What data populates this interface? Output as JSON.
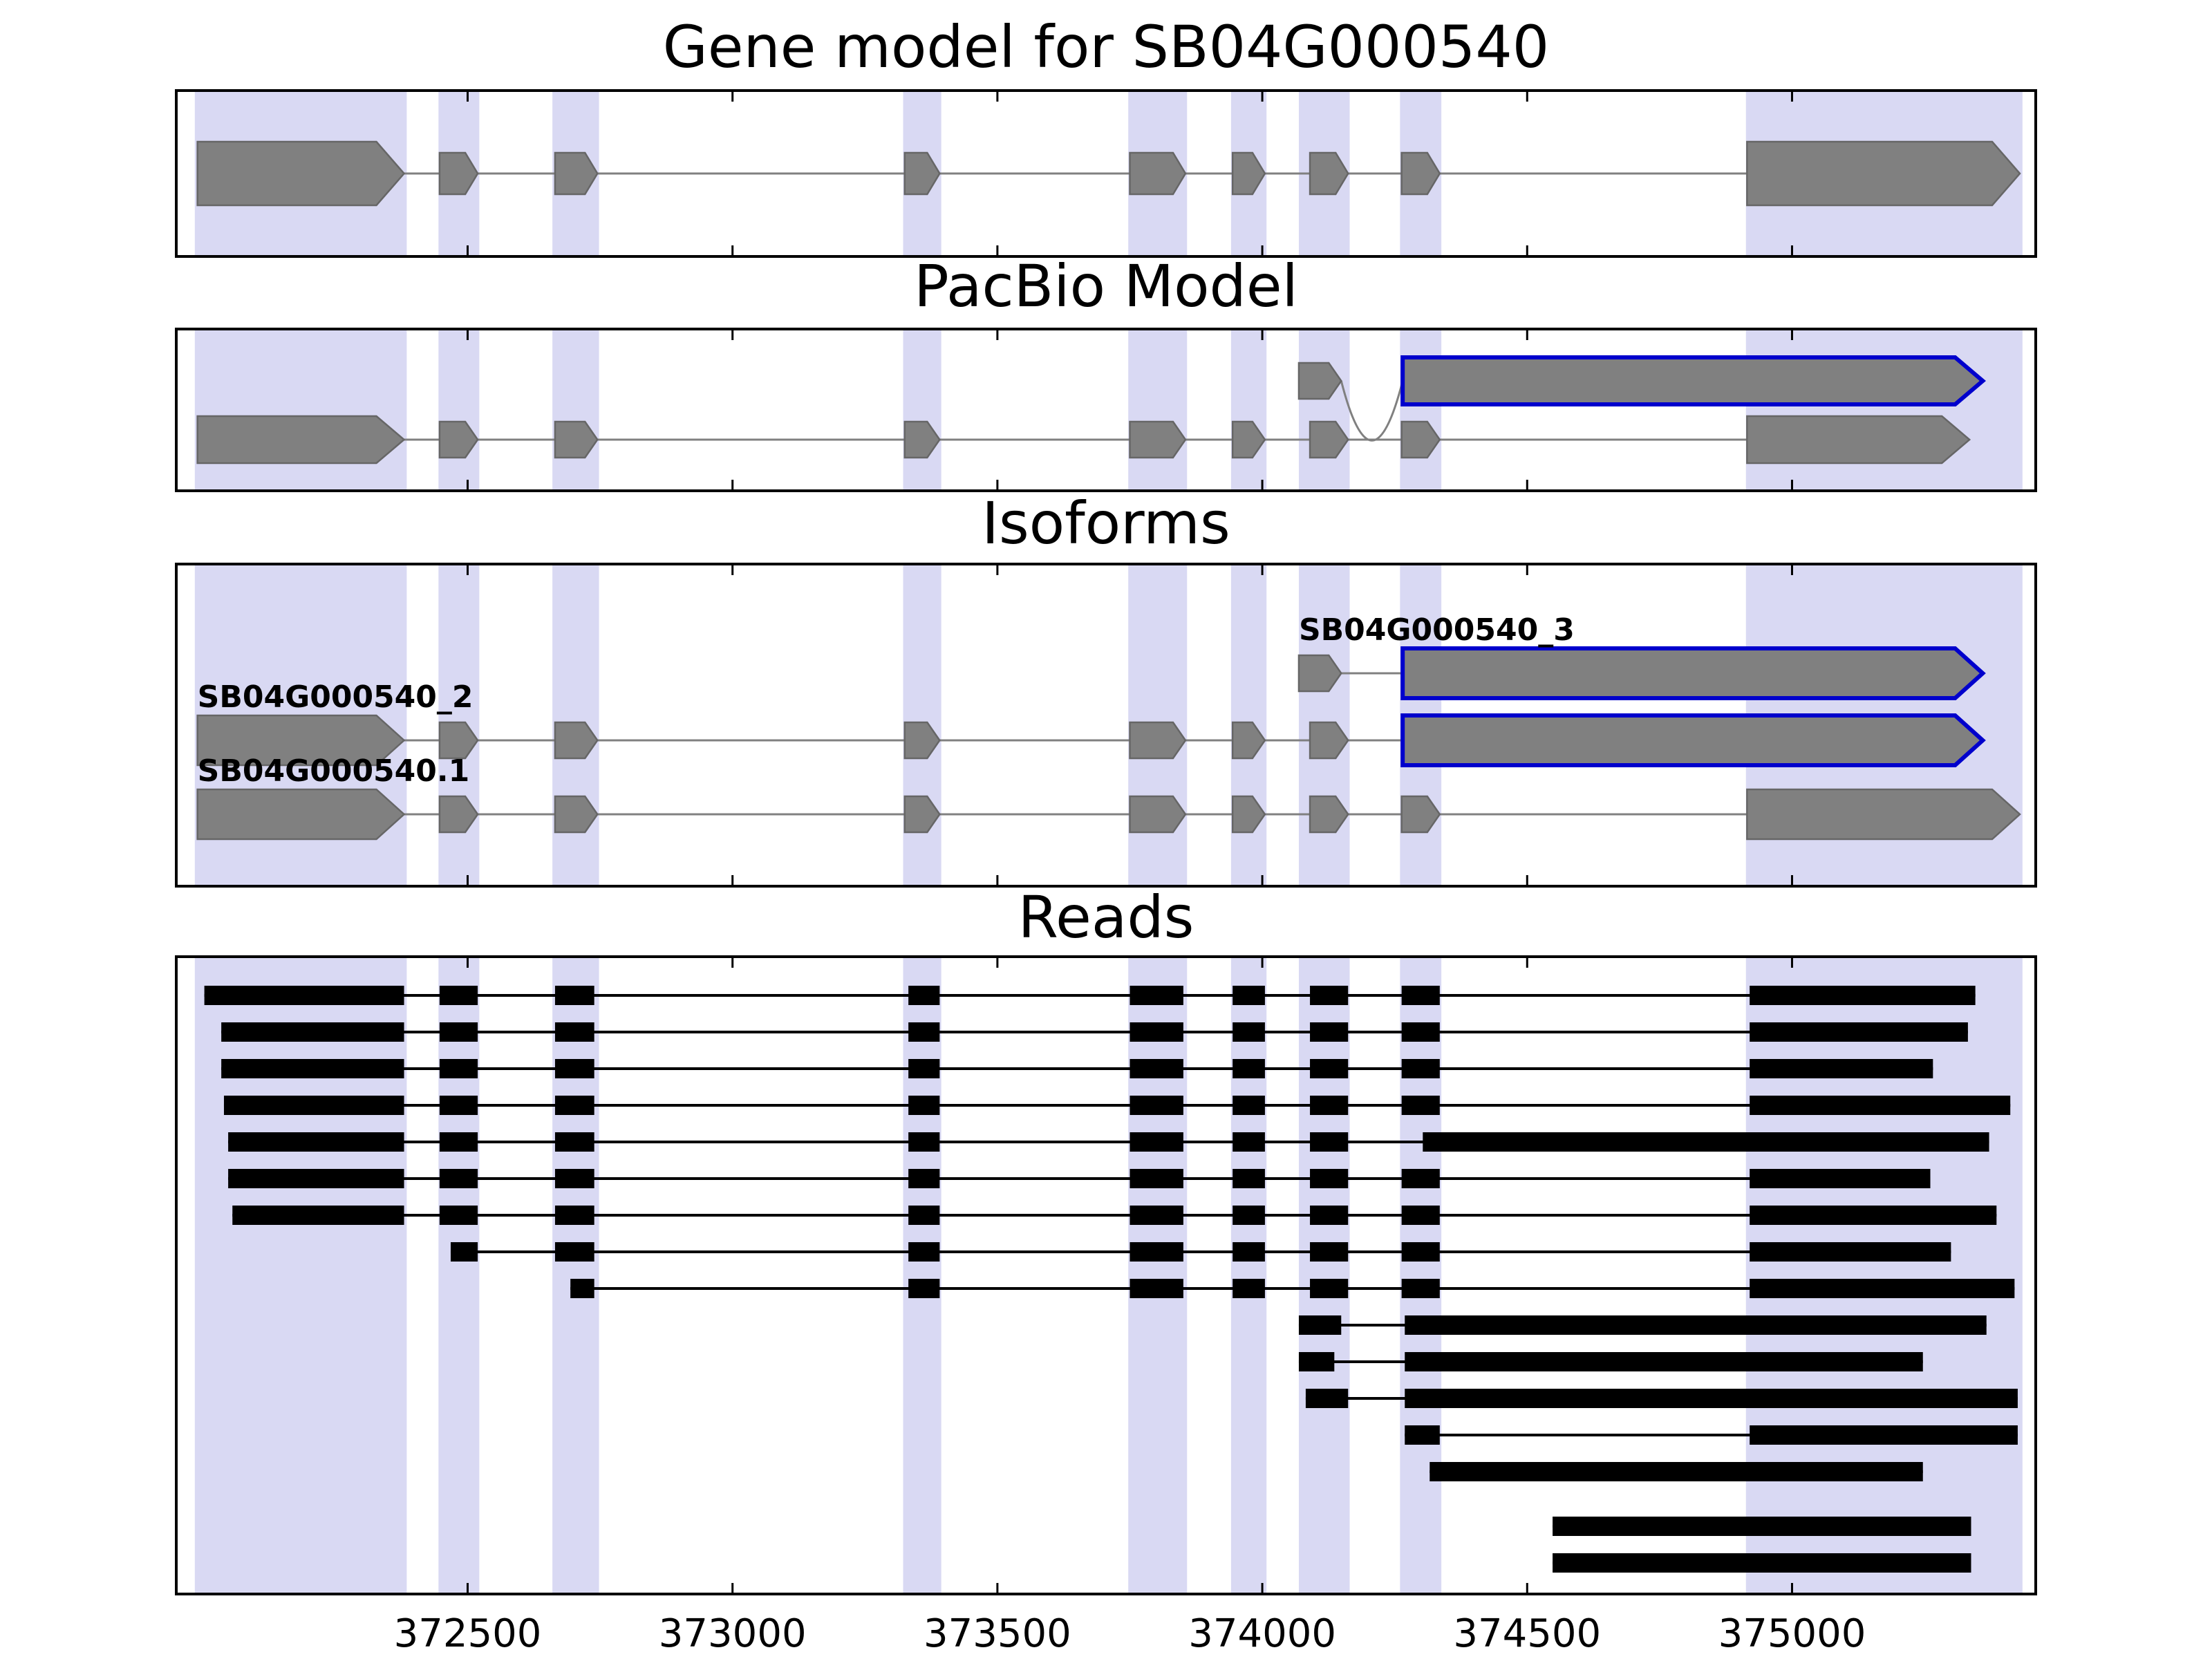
{
  "chart_data": {
    "type": "gene-model-tracks",
    "title": "Gene model for SB04G000540",
    "xlim": [
      371950,
      375460
    ],
    "xticks": [
      372500,
      373000,
      373500,
      374000,
      374500,
      375000
    ],
    "xtick_labels": [
      "372500",
      "373000",
      "373500",
      "374000",
      "374500",
      "375000"
    ],
    "grid": false,
    "legend": false,
    "colors": {
      "background": "#ffffff",
      "band": "#d9d9f3",
      "exon_fill": "#808080",
      "exon_edge": "#666666",
      "connector": "#808080",
      "highlight": "#0000cc",
      "read": "#000000",
      "panel_border": "#000000",
      "tick": "#000000",
      "text": "#000000"
    },
    "panels": [
      {
        "key": "gene_model",
        "title": "Gene model for SB04G000540"
      },
      {
        "key": "pacbio",
        "title": "PacBio Model"
      },
      {
        "key": "isoforms",
        "title": "Isoforms"
      },
      {
        "key": "reads",
        "title": "Reads"
      }
    ],
    "highlight_bands": [
      [
        371985,
        372385
      ],
      [
        372445,
        372522
      ],
      [
        372660,
        372748
      ],
      [
        373322,
        373394
      ],
      [
        373747,
        373858
      ],
      [
        373941,
        374008
      ],
      [
        374069,
        374165
      ],
      [
        374260,
        374338
      ],
      [
        374913,
        375435
      ]
    ],
    "gene_model": [
      {
        "name": "SB04G000540",
        "exons": [
          [
            371990,
            372380
          ],
          [
            372447,
            372519
          ],
          [
            372665,
            372745
          ],
          [
            373325,
            373391
          ],
          [
            373750,
            373855
          ],
          [
            373944,
            374005
          ],
          [
            374090,
            374162
          ],
          [
            374263,
            374335
          ],
          [
            374915,
            375430
          ]
        ],
        "highlight_exons": []
      }
    ],
    "pacbio": [
      {
        "name": "pacbio-novel-model",
        "exons": [
          [
            374069,
            374149
          ],
          [
            374265,
            375360
          ]
        ],
        "highlight_exons": [
          1
        ],
        "connector": "dip"
      },
      {
        "name": "pacbio-reference-model",
        "exons": [
          [
            371990,
            372380
          ],
          [
            372447,
            372519
          ],
          [
            372665,
            372745
          ],
          [
            373325,
            373391
          ],
          [
            373750,
            373855
          ],
          [
            373944,
            374005
          ],
          [
            374090,
            374162
          ],
          [
            374263,
            374335
          ],
          [
            374915,
            375335
          ]
        ],
        "highlight_exons": []
      }
    ],
    "isoforms": [
      {
        "label": "SB04G000540_3",
        "exons": [
          [
            374069,
            374149
          ],
          [
            374265,
            375360
          ]
        ],
        "highlight_exons": [
          1
        ]
      },
      {
        "label": "SB04G000540_2",
        "exons": [
          [
            371990,
            372380
          ],
          [
            372447,
            372519
          ],
          [
            372665,
            372745
          ],
          [
            373325,
            373391
          ],
          [
            373750,
            373855
          ],
          [
            373944,
            374005
          ],
          [
            374090,
            374162
          ],
          [
            374265,
            375360
          ]
        ],
        "highlight_exons": [
          7
        ]
      },
      {
        "label": "SB04G000540.1",
        "exons": [
          [
            371990,
            372380
          ],
          [
            372447,
            372519
          ],
          [
            372665,
            372745
          ],
          [
            373325,
            373391
          ],
          [
            373750,
            373855
          ],
          [
            373944,
            374005
          ],
          [
            374090,
            374162
          ],
          [
            374263,
            374335
          ],
          [
            374915,
            375430
          ]
        ],
        "highlight_exons": []
      }
    ],
    "reads": [
      {
        "segments": [
          [
            372003,
            372380
          ],
          [
            372447,
            372519
          ],
          [
            372665,
            372739
          ],
          [
            373332,
            373391
          ],
          [
            373750,
            373851
          ],
          [
            373944,
            374005
          ],
          [
            374090,
            374162
          ],
          [
            374263,
            374335
          ],
          [
            374920,
            375346
          ]
        ]
      },
      {
        "segments": [
          [
            372035,
            372380
          ],
          [
            372447,
            372519
          ],
          [
            372665,
            372739
          ],
          [
            373332,
            373391
          ],
          [
            373750,
            373851
          ],
          [
            373944,
            374005
          ],
          [
            374090,
            374162
          ],
          [
            374263,
            374335
          ],
          [
            374920,
            375332
          ]
        ]
      },
      {
        "segments": [
          [
            372035,
            372380
          ],
          [
            372447,
            372519
          ],
          [
            372665,
            372739
          ],
          [
            373332,
            373391
          ],
          [
            373750,
            373851
          ],
          [
            373944,
            374005
          ],
          [
            374090,
            374162
          ],
          [
            374263,
            374335
          ],
          [
            374920,
            375266
          ]
        ]
      },
      {
        "segments": [
          [
            372040,
            372380
          ],
          [
            372447,
            372519
          ],
          [
            372665,
            372739
          ],
          [
            373332,
            373391
          ],
          [
            373750,
            373851
          ],
          [
            373944,
            374005
          ],
          [
            374090,
            374162
          ],
          [
            374263,
            374335
          ],
          [
            374920,
            375412
          ]
        ]
      },
      {
        "segments": [
          [
            372048,
            372380
          ],
          [
            372447,
            372519
          ],
          [
            372665,
            372739
          ],
          [
            373332,
            373391
          ],
          [
            373750,
            373851
          ],
          [
            373944,
            374005
          ],
          [
            374090,
            374162
          ],
          [
            374303,
            375372
          ]
        ]
      },
      {
        "segments": [
          [
            372048,
            372380
          ],
          [
            372447,
            372519
          ],
          [
            372665,
            372739
          ],
          [
            373332,
            373391
          ],
          [
            373750,
            373851
          ],
          [
            373944,
            374005
          ],
          [
            374090,
            374162
          ],
          [
            374263,
            374335
          ],
          [
            374920,
            375261
          ]
        ]
      },
      {
        "segments": [
          [
            372056,
            372380
          ],
          [
            372447,
            372519
          ],
          [
            372665,
            372739
          ],
          [
            373332,
            373391
          ],
          [
            373750,
            373851
          ],
          [
            373944,
            374005
          ],
          [
            374090,
            374162
          ],
          [
            374263,
            374335
          ],
          [
            374920,
            375386
          ]
        ]
      },
      {
        "segments": [
          [
            372468,
            372519
          ],
          [
            372665,
            372739
          ],
          [
            373332,
            373391
          ],
          [
            373750,
            373851
          ],
          [
            373944,
            374005
          ],
          [
            374090,
            374162
          ],
          [
            374263,
            374335
          ],
          [
            374920,
            375300
          ]
        ]
      },
      {
        "segments": [
          [
            372694,
            372739
          ],
          [
            373332,
            373391
          ],
          [
            373750,
            373851
          ],
          [
            373944,
            374005
          ],
          [
            374090,
            374162
          ],
          [
            374263,
            374335
          ],
          [
            374920,
            375420
          ]
        ]
      },
      {
        "segments": [
          [
            374069,
            374149
          ],
          [
            374269,
            375367
          ]
        ]
      },
      {
        "segments": [
          [
            374069,
            374136
          ],
          [
            374269,
            375247
          ]
        ]
      },
      {
        "segments": [
          [
            374082,
            374162
          ],
          [
            374269,
            375426
          ]
        ]
      },
      {
        "segments": [
          [
            374269,
            374335
          ],
          [
            374920,
            375426
          ]
        ]
      },
      {
        "segments": [
          [
            374316,
            375247
          ]
        ]
      },
      {
        "segments": [
          [
            374548,
            375338
          ]
        ]
      },
      {
        "segments": [
          [
            374548,
            375338
          ]
        ]
      }
    ]
  }
}
